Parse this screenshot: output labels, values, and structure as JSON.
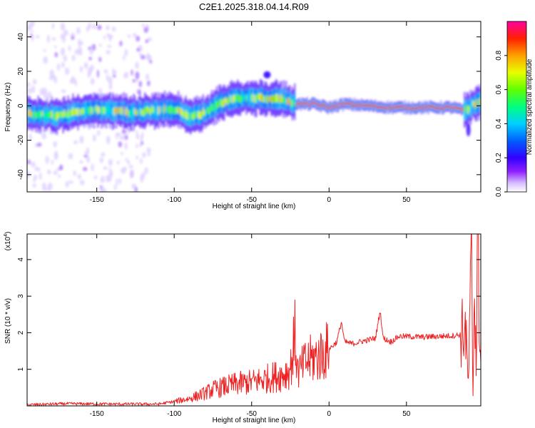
{
  "page_title": "C2E1.2025.318.04.14.R09",
  "chart_data": [
    {
      "type": "heatmap",
      "title": "C2E1.2025.318.04.14.R09",
      "xlabel": "Height of straight line (km)",
      "ylabel": "Frequency (Hz)",
      "xlim": [
        -195,
        98
      ],
      "ylim": [
        -50,
        49
      ],
      "xticks": [
        -150,
        -100,
        -50,
        0,
        50
      ],
      "yticks": [
        -40,
        -20,
        0,
        20,
        40
      ],
      "colorbar": {
        "label": "Normalized spectral amplitude",
        "range": [
          0,
          1
        ],
        "ticks": [
          0.0,
          0.2,
          0.4,
          0.6,
          0.8
        ],
        "colors": [
          "#ffffff",
          "#d8c0ff",
          "#9020ff",
          "#3000ff",
          "#0060ff",
          "#00d0ff",
          "#00ff80",
          "#60ff00",
          "#e8ff00",
          "#ffa000",
          "#ff2000",
          "#ff00a0"
        ]
      },
      "ridge": [
        {
          "x": -190,
          "f": -5
        },
        {
          "x": -175,
          "f": -6
        },
        {
          "x": -160,
          "f": -3
        },
        {
          "x": -145,
          "f": -2
        },
        {
          "x": -130,
          "f": -4
        },
        {
          "x": -115,
          "f": -3
        },
        {
          "x": -100,
          "f": -2
        },
        {
          "x": -90,
          "f": -6
        },
        {
          "x": -80,
          "f": -4
        },
        {
          "x": -70,
          "f": 2
        },
        {
          "x": -60,
          "f": 4
        },
        {
          "x": -50,
          "f": 5
        },
        {
          "x": -40,
          "f": 4
        },
        {
          "x": -30,
          "f": 4
        },
        {
          "x": -20,
          "f": 1
        },
        {
          "x": -10,
          "f": 1
        },
        {
          "x": 0,
          "f": -1
        },
        {
          "x": 10,
          "f": 1
        },
        {
          "x": 25,
          "f": 0
        },
        {
          "x": 40,
          "f": -1
        },
        {
          "x": 60,
          "f": -1
        },
        {
          "x": 80,
          "f": -1
        },
        {
          "x": 88,
          "f": -3
        },
        {
          "x": 95,
          "f": 2
        }
      ]
    },
    {
      "type": "line",
      "title": "",
      "xlabel": "Height of straight line (km)",
      "ylabel": "SNR (10 * v/v)",
      "yscale_label": "(x10",
      "yscale_exp": "4",
      "color": "#ee2222",
      "xlim": [
        -195,
        98
      ],
      "ylim": [
        0,
        4.7
      ],
      "xticks": [
        -150,
        -100,
        -50,
        0,
        50
      ],
      "yticks": [
        1,
        2,
        3,
        4
      ],
      "series": [
        {
          "x": [
            -195,
            -170,
            -140,
            -110,
            -100,
            -90,
            -80,
            -75,
            -70,
            -60,
            -50,
            -40,
            -30,
            -25,
            -22,
            -20,
            -15,
            -10,
            -5,
            0,
            5,
            8,
            10,
            15,
            20,
            25,
            30,
            33,
            35,
            40,
            45,
            50,
            60,
            70,
            80,
            85,
            88,
            90,
            92,
            93,
            94,
            95,
            96,
            98
          ],
          "y": [
            0.03,
            0.06,
            0.05,
            0.05,
            0.12,
            0.2,
            0.35,
            0.45,
            0.5,
            0.6,
            0.65,
            0.75,
            0.85,
            1.0,
            1.9,
            0.9,
            1.2,
            1.3,
            1.4,
            1.55,
            1.75,
            2.3,
            1.75,
            1.7,
            1.75,
            1.8,
            1.85,
            2.6,
            1.85,
            1.75,
            1.9,
            1.9,
            1.88,
            1.9,
            1.92,
            1.95,
            2.1,
            0.6,
            4.0,
            0.3,
            3.9,
            1.0,
            4.6,
            1.2
          ]
        }
      ]
    }
  ]
}
